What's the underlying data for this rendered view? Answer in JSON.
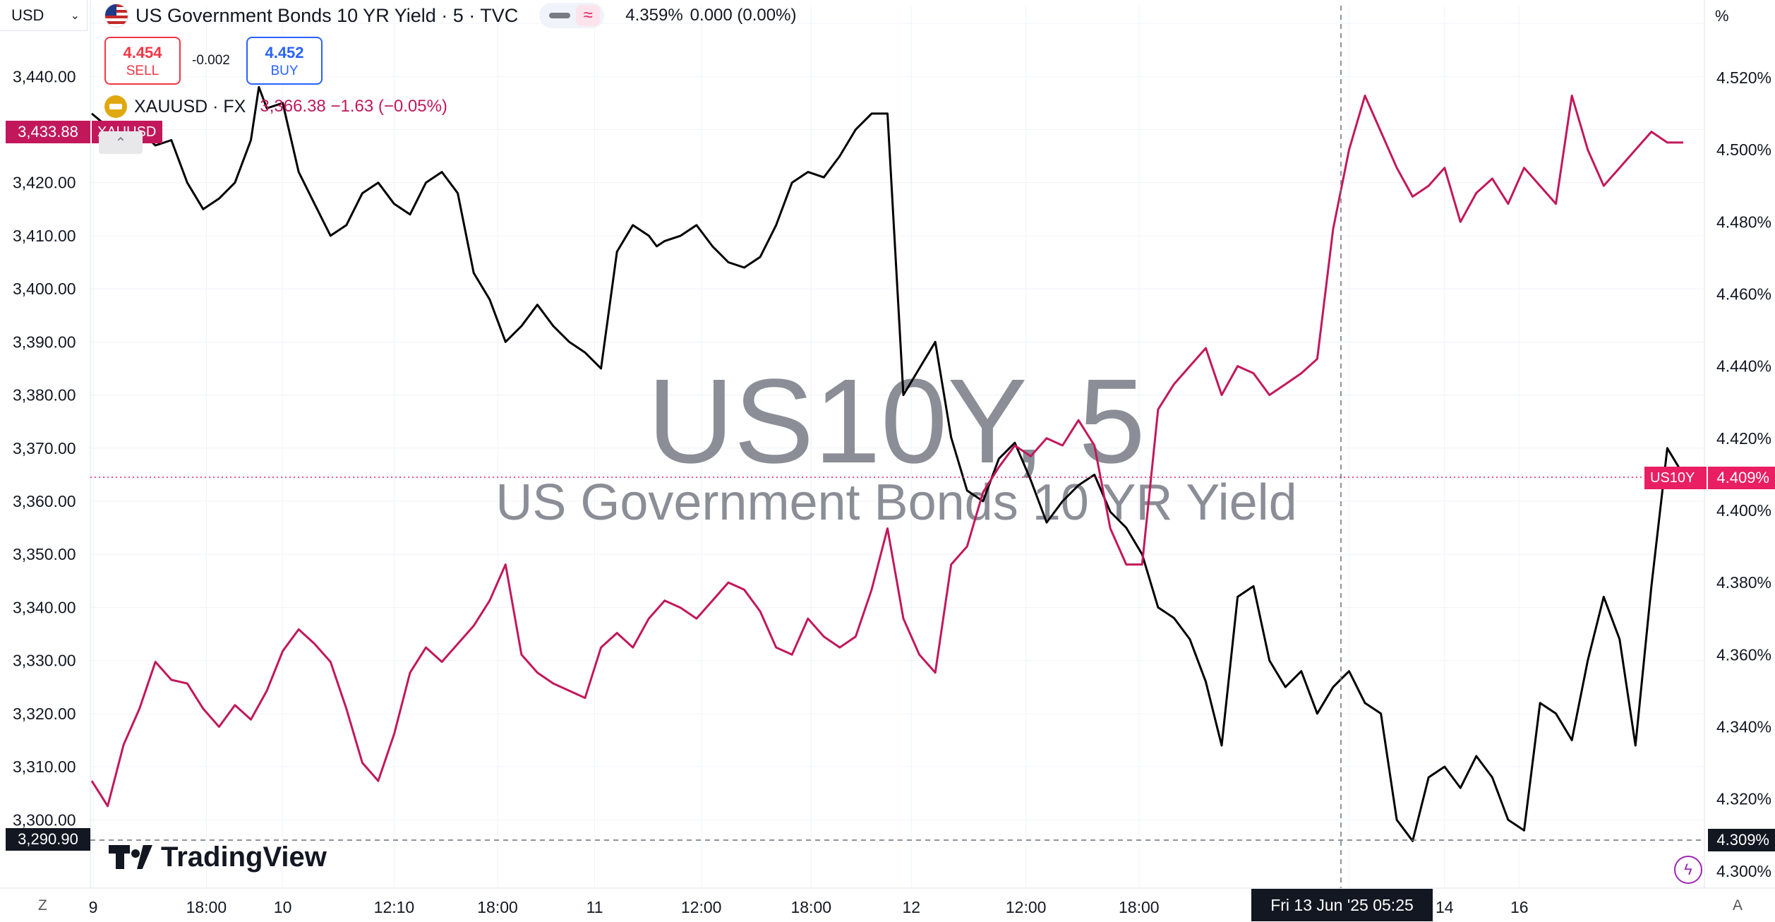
{
  "header": {
    "currency": "USD",
    "symbol_title": "US Government Bonds 10 YR Yield · 5 · TVC",
    "last_value": "4.359%",
    "change": "0.000 (0.00%)",
    "right_unit": "%"
  },
  "trade": {
    "sell_price": "4.454",
    "sell_label": "SELL",
    "spread": "-0.002",
    "buy_price": "4.452",
    "buy_label": "BUY"
  },
  "gold_legend": {
    "symbol": "XAUUSD · FX",
    "value": "3,366.38 −1.63 (−0.05%)"
  },
  "watermark": {
    "symbol": "US10Y, 5",
    "name": "US Government Bonds 10 YR Yield"
  },
  "tags": {
    "gold_price": "3,433.88",
    "gold_name": "XAUUSD",
    "gold_min": "3,290.90",
    "us10y_name": "US10Y",
    "us10y_price": "4.409%",
    "us10y_min": "4.309%"
  },
  "crosshair": {
    "date_label": "Fri 13 Jun '25   05:25"
  },
  "logo": {
    "text": "TradingView"
  },
  "controls": {
    "left": "Z",
    "right": "A"
  },
  "icons": {
    "flag": "us-flag-icon",
    "gold": "gold-bar-icon",
    "compare": "compare-wave-icon",
    "bolt": "lightning-icon",
    "collapse": "collapse-arrow-icon",
    "dropdown": "chevron-down-icon"
  },
  "colors": {
    "us10y": "#c2185b",
    "xauusd": "#000000",
    "sell": "#f23645",
    "buy": "#2962ff"
  },
  "chart_data": {
    "type": "line",
    "x_ticks": [
      "9",
      "18:00",
      "10",
      "12:10",
      "18:00",
      "11",
      "12:00",
      "18:00",
      "12",
      "12:00",
      "18:00",
      "18:00",
      "14",
      "16"
    ],
    "left_axis": {
      "series": "XAUUSD",
      "ticks": [
        "3,450.00",
        "3,440.00",
        "3,430.00",
        "3,420.00",
        "3,410.00",
        "3,400.00",
        "3,390.00",
        "3,380.00",
        "3,370.00",
        "3,360.00",
        "3,350.00",
        "3,340.00",
        "3,330.00",
        "3,320.00",
        "3,310.00",
        "3,300.00"
      ],
      "ylim": [
        3289,
        3452
      ]
    },
    "right_axis": {
      "series": "US10Y",
      "ticks": [
        "4.520%",
        "4.500%",
        "4.480%",
        "4.460%",
        "4.440%",
        "4.420%",
        "4.400%",
        "4.380%",
        "4.360%",
        "4.340%",
        "4.320%",
        "4.300%"
      ],
      "ylim": [
        4.298,
        4.538
      ]
    },
    "series": [
      {
        "name": "XAUUSD",
        "axis": "left",
        "x": [
          0,
          2,
          3,
          4,
          5,
          6,
          7,
          8,
          9,
          10,
          10.5,
          11,
          12,
          13,
          14,
          15,
          16,
          17,
          18,
          19,
          20,
          21,
          22,
          23,
          24,
          25,
          26,
          27,
          28,
          29,
          30,
          31,
          32,
          33,
          34,
          35,
          35.5,
          36,
          37,
          38,
          39,
          40,
          41,
          42,
          43,
          44,
          45,
          46,
          47,
          48,
          49,
          50,
          51,
          52,
          53,
          54,
          55,
          56,
          57,
          58,
          59,
          60,
          61,
          62,
          63,
          64,
          65,
          66,
          67,
          68,
          69,
          70,
          71,
          72,
          73,
          74,
          75,
          76,
          77,
          78,
          79,
          80,
          81,
          82,
          83,
          84,
          85,
          86,
          87,
          88,
          89,
          90,
          91,
          92,
          93,
          94,
          95,
          96,
          97,
          98,
          99,
          100
        ],
        "values": [
          3433,
          3428,
          3430,
          3427,
          3428,
          3420,
          3415,
          3417,
          3420,
          3428,
          3438,
          3434,
          3435,
          3422,
          3416,
          3410,
          3412,
          3418,
          3420,
          3416,
          3414,
          3420,
          3422,
          3418,
          3403,
          3398,
          3390,
          3393,
          3397,
          3393,
          3390,
          3388,
          3385,
          3407,
          3412,
          3410,
          3408,
          3409,
          3410,
          3412,
          3408,
          3405,
          3404,
          3406,
          3412,
          3420,
          3422,
          3421,
          3425,
          3430,
          3433,
          3433,
          3380,
          3385,
          3390,
          3372,
          3362,
          3360,
          3368,
          3371,
          3364,
          3356,
          3360,
          3363,
          3365,
          3358,
          3355,
          3350,
          3340,
          3338,
          3334,
          3326,
          3314,
          3342,
          3344,
          3330,
          3325,
          3328,
          3320,
          3325,
          3328,
          3322,
          3320,
          3300,
          3296,
          3308,
          3310,
          3306,
          3312,
          3308,
          3300,
          3298,
          3322,
          3320,
          3315,
          3330,
          3342,
          3334,
          3314,
          3344,
          3370,
          3365
        ]
      },
      {
        "name": "US10Y",
        "axis": "right",
        "x": [
          0,
          1,
          2,
          3,
          4,
          5,
          6,
          7,
          8,
          9,
          10,
          11,
          12,
          13,
          14,
          15,
          16,
          17,
          18,
          19,
          20,
          21,
          22,
          23,
          24,
          25,
          26,
          27,
          28,
          29,
          30,
          31,
          32,
          33,
          34,
          35,
          36,
          37,
          38,
          39,
          40,
          41,
          42,
          43,
          44,
          45,
          46,
          47,
          48,
          49,
          50,
          51,
          52,
          53,
          54,
          55,
          56,
          57,
          58,
          59,
          60,
          61,
          62,
          63,
          64,
          65,
          66,
          67,
          68,
          69,
          70,
          71,
          72,
          73,
          74,
          75,
          76,
          77,
          78,
          79,
          80,
          81,
          82,
          83,
          84,
          85,
          86,
          87,
          88,
          89,
          90,
          91,
          92,
          93,
          94,
          95,
          96,
          97,
          98,
          99,
          100
        ],
        "values": [
          4.325,
          4.318,
          4.335,
          4.345,
          4.358,
          4.353,
          4.352,
          4.345,
          4.34,
          4.346,
          4.342,
          4.35,
          4.361,
          4.367,
          4.363,
          4.358,
          4.345,
          4.33,
          4.325,
          4.338,
          4.355,
          4.362,
          4.358,
          4.363,
          4.368,
          4.375,
          4.385,
          4.36,
          4.355,
          4.352,
          4.35,
          4.348,
          4.362,
          4.366,
          4.362,
          4.37,
          4.375,
          4.373,
          4.37,
          4.375,
          4.38,
          4.378,
          4.372,
          4.362,
          4.36,
          4.37,
          4.365,
          4.362,
          4.365,
          4.378,
          4.395,
          4.37,
          4.36,
          4.355,
          4.385,
          4.39,
          4.405,
          4.412,
          4.418,
          4.415,
          4.42,
          4.418,
          4.425,
          4.418,
          4.395,
          4.385,
          4.385,
          4.428,
          4.435,
          4.44,
          4.445,
          4.432,
          4.44,
          4.438,
          4.432,
          4.435,
          4.438,
          4.442,
          4.478,
          4.5,
          4.515,
          4.505,
          4.495,
          4.487,
          4.49,
          4.495,
          4.48,
          4.488,
          4.492,
          4.485,
          4.495,
          4.49,
          4.485,
          4.515,
          4.5,
          4.49,
          4.495,
          4.5,
          4.505,
          4.502,
          4.502
        ]
      }
    ],
    "grid": true,
    "legend": "top-left"
  }
}
